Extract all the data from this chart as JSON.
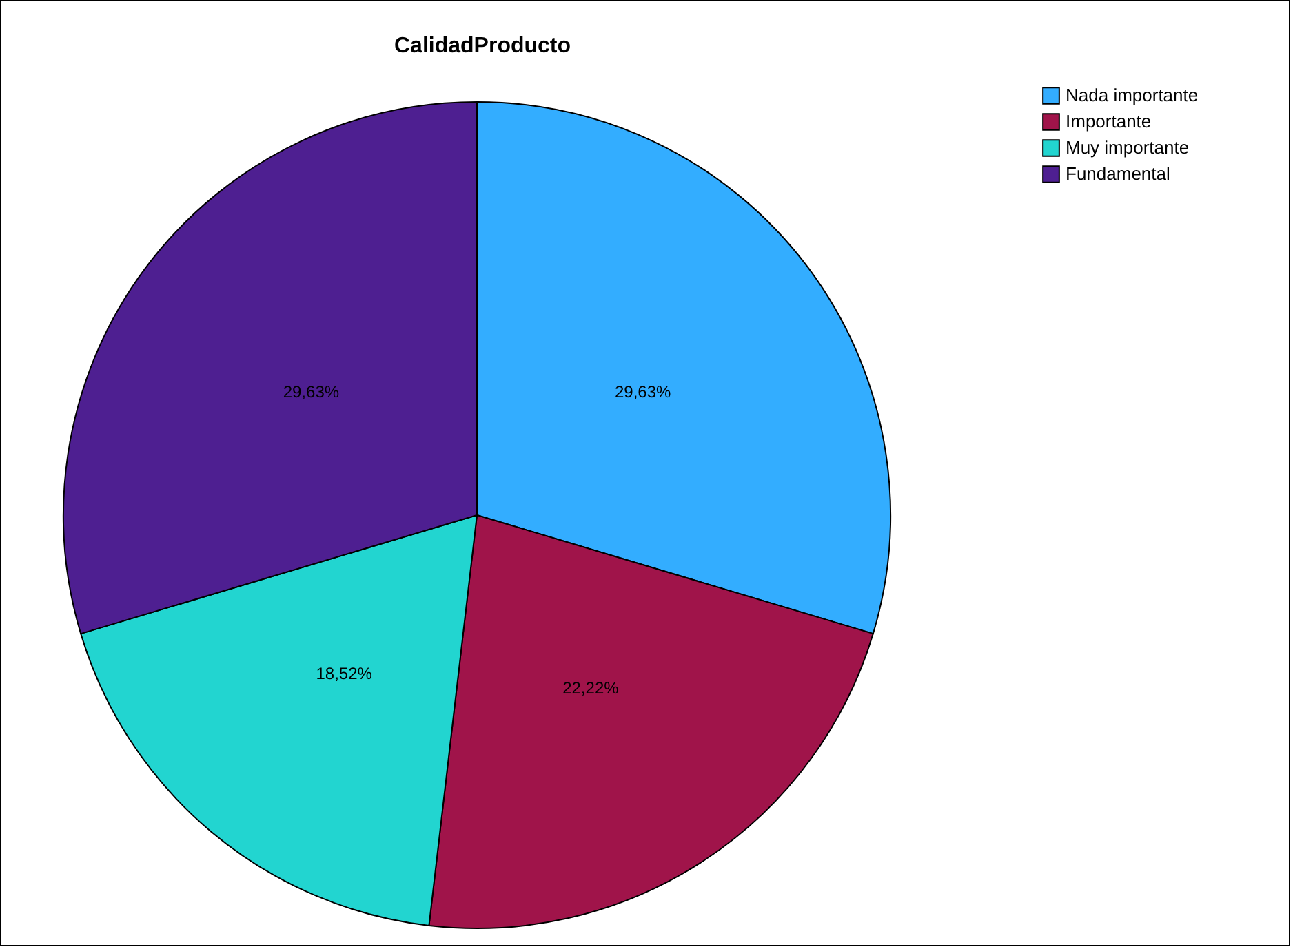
{
  "chart_data": {
    "type": "pie",
    "title": "CalidadProducto",
    "categories": [
      "Nada importante",
      "Importante",
      "Muy importante",
      "Fundamental"
    ],
    "values": [
      29.63,
      22.22,
      18.52,
      29.63
    ],
    "value_labels": [
      "29,63%",
      "22,22%",
      "18,52%",
      "29,63%"
    ],
    "colors": [
      "#33adff",
      "#a0144a",
      "#22d5d0",
      "#4e1f91"
    ],
    "legend": "top right"
  }
}
